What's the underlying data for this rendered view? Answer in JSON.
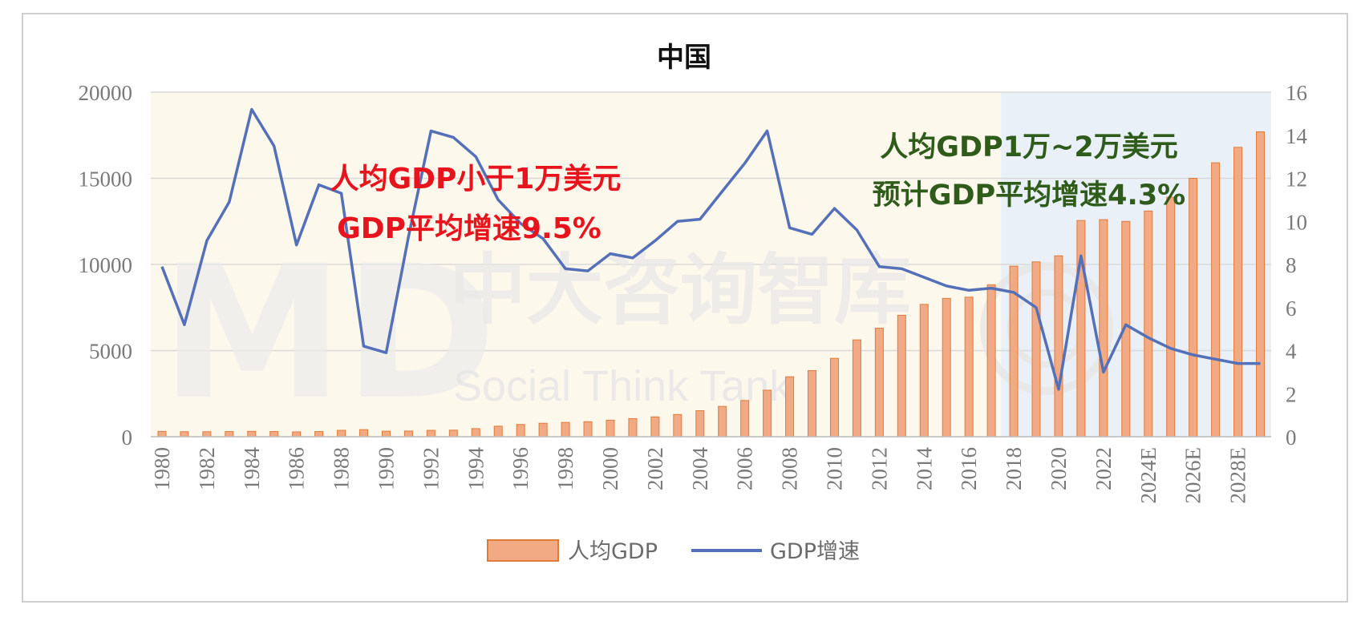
{
  "chart_data": {
    "type": "bar+line",
    "title": "中国",
    "categories": [
      "1980",
      "1981",
      "1982",
      "1983",
      "1984",
      "1985",
      "1986",
      "1987",
      "1988",
      "1989",
      "1990",
      "1991",
      "1992",
      "1993",
      "1994",
      "1995",
      "1996",
      "1997",
      "1998",
      "1999",
      "2000",
      "2001",
      "2002",
      "2003",
      "2004",
      "2005",
      "2006",
      "2007",
      "2008",
      "2009",
      "2010",
      "2011",
      "2012",
      "2013",
      "2014",
      "2015",
      "2016",
      "2017",
      "2018",
      "2019",
      "2020",
      "2021",
      "2022",
      "2023",
      "2024E",
      "2025",
      "2026E",
      "2027",
      "2028E",
      "2029"
    ],
    "x_tick_labels": [
      "1980",
      "",
      "1982",
      "",
      "1984",
      "",
      "1986",
      "",
      "1988",
      "",
      "1990",
      "",
      "1992",
      "",
      "1994",
      "",
      "1996",
      "",
      "1998",
      "",
      "2000",
      "",
      "2002",
      "",
      "2004",
      "",
      "2006",
      "",
      "2008",
      "",
      "2010",
      "",
      "2012",
      "",
      "2014",
      "",
      "2016",
      "",
      "2018",
      "",
      "2020",
      "",
      "2022",
      "",
      "2024E",
      "",
      "2026E",
      "",
      "2028E",
      ""
    ],
    "series": [
      {
        "name": "人均GDP",
        "type": "bar",
        "axis": "left",
        "color": "#f2aa84",
        "edge_color": "#e07b39",
        "values": [
          310,
          290,
          290,
          300,
          310,
          300,
          280,
          300,
          370,
          410,
          320,
          330,
          370,
          380,
          470,
          610,
          710,
          780,
          830,
          870,
          960,
          1050,
          1150,
          1290,
          1510,
          1760,
          2100,
          2700,
          3480,
          3840,
          4550,
          5620,
          6300,
          7050,
          7680,
          8030,
          8100,
          8820,
          9900,
          10150,
          10500,
          12550,
          12600,
          12500,
          13100,
          13900,
          15000,
          15900,
          16800,
          17700
        ]
      },
      {
        "name": "GDP增速",
        "type": "line",
        "axis": "right",
        "color": "#5470b8",
        "values": [
          7.9,
          5.2,
          9.1,
          10.9,
          15.2,
          13.5,
          8.9,
          11.7,
          11.3,
          4.2,
          3.9,
          9.3,
          14.2,
          13.9,
          13.0,
          11.0,
          9.9,
          9.2,
          7.8,
          7.7,
          8.5,
          8.3,
          9.1,
          10.0,
          10.1,
          11.4,
          12.7,
          14.2,
          9.7,
          9.4,
          10.6,
          9.6,
          7.9,
          7.8,
          7.4,
          7.0,
          6.8,
          6.9,
          6.7,
          6.0,
          2.2,
          8.4,
          3.0,
          5.2,
          4.6,
          4.1,
          3.8,
          3.6,
          3.4,
          3.4
        ]
      }
    ],
    "y_left": {
      "min": 0,
      "max": 20000,
      "ticks": [
        0,
        5000,
        10000,
        15000,
        20000
      ],
      "tick_labels": [
        "0",
        "5000",
        "10000",
        "15000",
        "20000"
      ]
    },
    "y_right": {
      "min": 0,
      "max": 16,
      "ticks": [
        0,
        2,
        4,
        6,
        8,
        10,
        12,
        14,
        16
      ],
      "tick_labels": [
        "0",
        "2",
        "4",
        "6",
        "8",
        "10",
        "12",
        "14",
        "16"
      ]
    },
    "shaded_regions": [
      {
        "name": "low-income-era",
        "from": "1980",
        "to": "2017",
        "color": "#fdf8ec"
      },
      {
        "name": "middle-income-era",
        "from": "2018",
        "to": "2029",
        "color": "#e9f0f8"
      }
    ],
    "grid": true,
    "legend_position": "bottom",
    "annotations": [
      {
        "name": "era1-line1",
        "text": "人均GDP小于1万美元",
        "color": "#e8141d"
      },
      {
        "name": "era1-line2",
        "text": "GDP平均增速9.5%",
        "color": "#e8141d"
      },
      {
        "name": "era2-line1",
        "text": "人均GDP1万~2万美元",
        "color": "#2f5b1b"
      },
      {
        "name": "era2-line2",
        "text": "预计GDP平均增速4.3%",
        "color": "#2f5b1b"
      }
    ]
  },
  "watermark": {
    "logo_letters": "MD",
    "text_cn": "中大咨询智库",
    "text_en": "Social Think Tank"
  }
}
